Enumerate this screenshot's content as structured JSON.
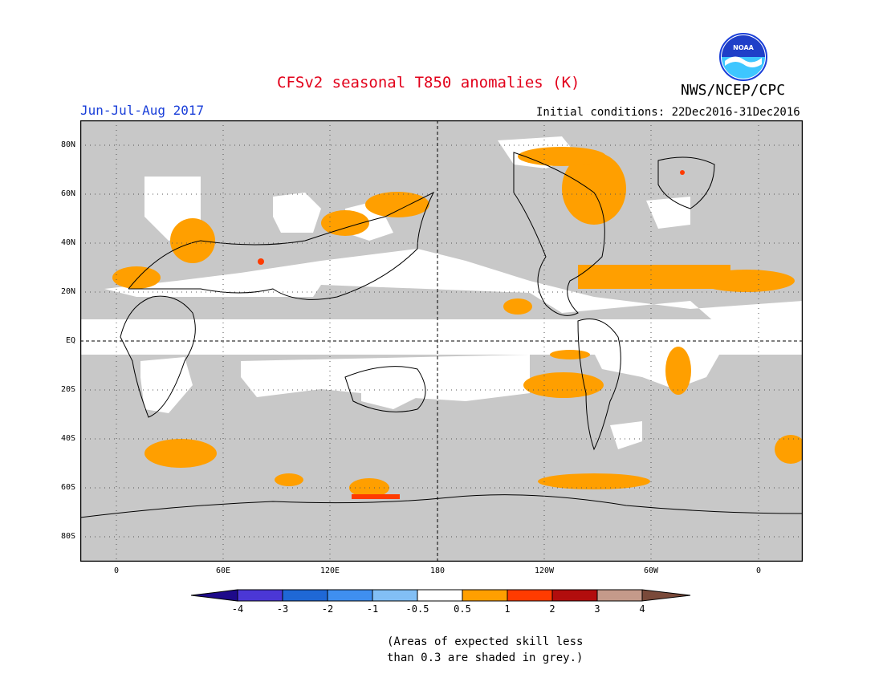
{
  "header": {
    "title": "CFSv2 seasonal T850 anomalies (K)",
    "season": "Jun-Jul-Aug 2017",
    "agency": "NWS/NCEP/CPC",
    "initial_conditions": "Initial conditions: 22Dec2016-31Dec2016"
  },
  "logo": {
    "text": "NOAA",
    "icon": "noaa-logo"
  },
  "axes": {
    "lat_labels": [
      "80N",
      "60N",
      "40N",
      "20N",
      "EQ",
      "20S",
      "40S",
      "60S",
      "80S"
    ],
    "lon_labels": [
      "0",
      "60E",
      "120E",
      "180",
      "120W",
      "60W",
      "0"
    ]
  },
  "colorbar": {
    "labels": [
      "-4",
      "-3",
      "-2",
      "-1",
      "-0.5",
      "0.5",
      "1",
      "2",
      "3",
      "4"
    ],
    "colors": [
      "#1e0a8a",
      "#4b37d6",
      "#1f68d6",
      "#3f8ff0",
      "#82bff5",
      "#ffffff",
      "#ff9f00",
      "#ff3b00",
      "#b20d0d",
      "#c59a8a",
      "#7a4a3a"
    ]
  },
  "map_colors": {
    "skill_grey": "#c8c8c8",
    "no_signal": "#ffffff",
    "anomaly_0_5_1": "#ff9f00",
    "anomaly_1_2": "#ff3b00",
    "anomaly_2_3": "#b20d0d"
  },
  "footnote": {
    "line1": "(Areas of expected skill less",
    "line2": "than 0.3 are shaded in grey.)"
  }
}
